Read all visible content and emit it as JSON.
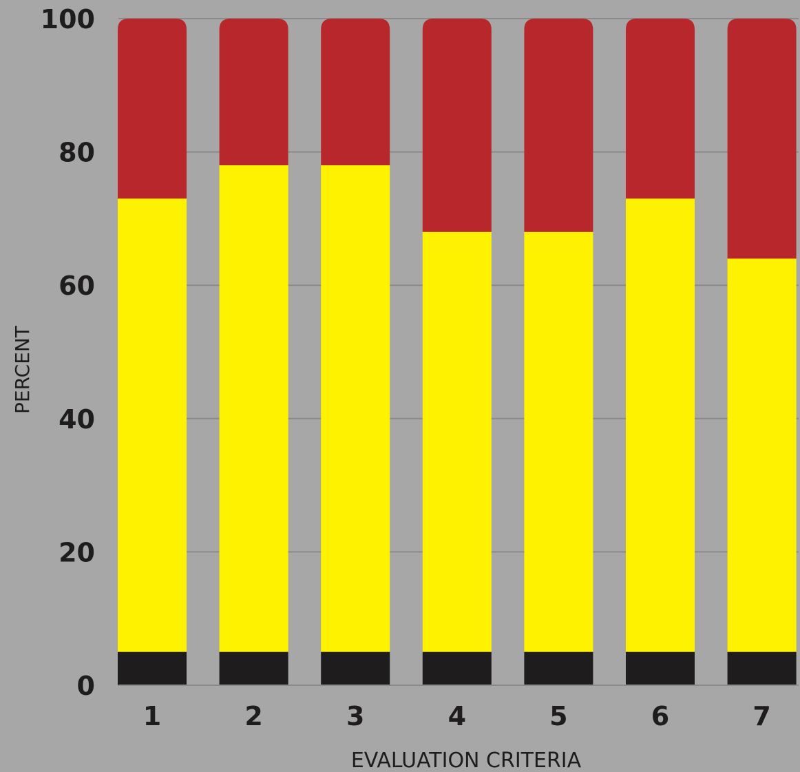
{
  "chart_data": {
    "type": "bar",
    "stacked": true,
    "xlabel": "EVALUATION CRITERIA",
    "ylabel": "PERCENT",
    "ylim": [
      0,
      100
    ],
    "yticks": [
      0,
      20,
      40,
      60,
      80,
      100
    ],
    "categories": [
      "1",
      "2",
      "3",
      "4",
      "5",
      "6",
      "7"
    ],
    "grid": true,
    "legend": "none",
    "background_color": "#a7a7a7",
    "gridline_color": "#8a8a8a",
    "series": [
      {
        "color": "#1f1c1d",
        "values": [
          5,
          5,
          5,
          5,
          5,
          5,
          5
        ]
      },
      {
        "color": "#fff200",
        "values": [
          68,
          73,
          73,
          63,
          63,
          68,
          59
        ]
      },
      {
        "color": "#b8272c",
        "values": [
          27,
          22,
          22,
          32,
          32,
          27,
          36
        ]
      }
    ]
  }
}
